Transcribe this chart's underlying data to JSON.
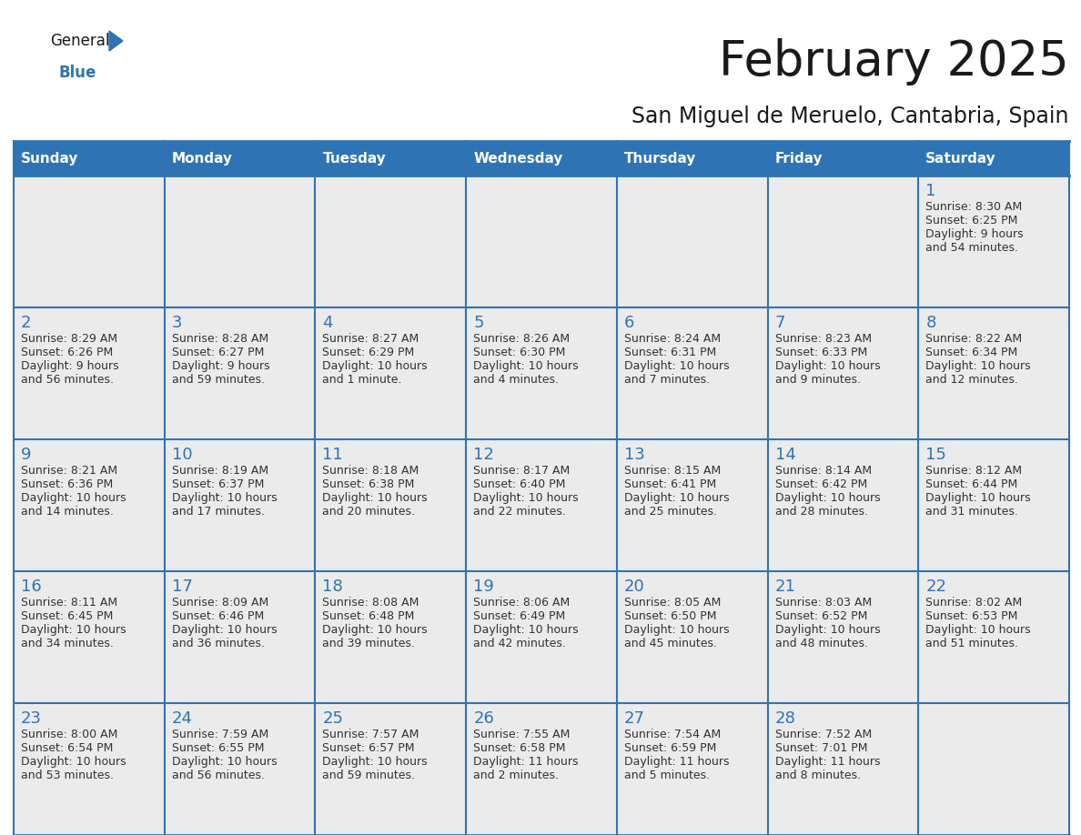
{
  "title": "February 2025",
  "subtitle": "San Miguel de Meruelo, Cantabria, Spain",
  "header_bg": "#2E74B5",
  "header_text": "#FFFFFF",
  "cell_bg": "#EBEBEB",
  "border_color": "#2E74B5",
  "title_color": "#1A1A1A",
  "subtitle_color": "#1A1A1A",
  "day_number_color": "#2E74B5",
  "cell_text_color": "#333333",
  "days_of_week": [
    "Sunday",
    "Monday",
    "Tuesday",
    "Wednesday",
    "Thursday",
    "Friday",
    "Saturday"
  ],
  "weeks": [
    [
      {
        "day": null,
        "lines": null
      },
      {
        "day": null,
        "lines": null
      },
      {
        "day": null,
        "lines": null
      },
      {
        "day": null,
        "lines": null
      },
      {
        "day": null,
        "lines": null
      },
      {
        "day": null,
        "lines": null
      },
      {
        "day": 1,
        "lines": [
          "Sunrise: 8:30 AM",
          "Sunset: 6:25 PM",
          "Daylight: 9 hours",
          "and 54 minutes."
        ]
      }
    ],
    [
      {
        "day": 2,
        "lines": [
          "Sunrise: 8:29 AM",
          "Sunset: 6:26 PM",
          "Daylight: 9 hours",
          "and 56 minutes."
        ]
      },
      {
        "day": 3,
        "lines": [
          "Sunrise: 8:28 AM",
          "Sunset: 6:27 PM",
          "Daylight: 9 hours",
          "and 59 minutes."
        ]
      },
      {
        "day": 4,
        "lines": [
          "Sunrise: 8:27 AM",
          "Sunset: 6:29 PM",
          "Daylight: 10 hours",
          "and 1 minute."
        ]
      },
      {
        "day": 5,
        "lines": [
          "Sunrise: 8:26 AM",
          "Sunset: 6:30 PM",
          "Daylight: 10 hours",
          "and 4 minutes."
        ]
      },
      {
        "day": 6,
        "lines": [
          "Sunrise: 8:24 AM",
          "Sunset: 6:31 PM",
          "Daylight: 10 hours",
          "and 7 minutes."
        ]
      },
      {
        "day": 7,
        "lines": [
          "Sunrise: 8:23 AM",
          "Sunset: 6:33 PM",
          "Daylight: 10 hours",
          "and 9 minutes."
        ]
      },
      {
        "day": 8,
        "lines": [
          "Sunrise: 8:22 AM",
          "Sunset: 6:34 PM",
          "Daylight: 10 hours",
          "and 12 minutes."
        ]
      }
    ],
    [
      {
        "day": 9,
        "lines": [
          "Sunrise: 8:21 AM",
          "Sunset: 6:36 PM",
          "Daylight: 10 hours",
          "and 14 minutes."
        ]
      },
      {
        "day": 10,
        "lines": [
          "Sunrise: 8:19 AM",
          "Sunset: 6:37 PM",
          "Daylight: 10 hours",
          "and 17 minutes."
        ]
      },
      {
        "day": 11,
        "lines": [
          "Sunrise: 8:18 AM",
          "Sunset: 6:38 PM",
          "Daylight: 10 hours",
          "and 20 minutes."
        ]
      },
      {
        "day": 12,
        "lines": [
          "Sunrise: 8:17 AM",
          "Sunset: 6:40 PM",
          "Daylight: 10 hours",
          "and 22 minutes."
        ]
      },
      {
        "day": 13,
        "lines": [
          "Sunrise: 8:15 AM",
          "Sunset: 6:41 PM",
          "Daylight: 10 hours",
          "and 25 minutes."
        ]
      },
      {
        "day": 14,
        "lines": [
          "Sunrise: 8:14 AM",
          "Sunset: 6:42 PM",
          "Daylight: 10 hours",
          "and 28 minutes."
        ]
      },
      {
        "day": 15,
        "lines": [
          "Sunrise: 8:12 AM",
          "Sunset: 6:44 PM",
          "Daylight: 10 hours",
          "and 31 minutes."
        ]
      }
    ],
    [
      {
        "day": 16,
        "lines": [
          "Sunrise: 8:11 AM",
          "Sunset: 6:45 PM",
          "Daylight: 10 hours",
          "and 34 minutes."
        ]
      },
      {
        "day": 17,
        "lines": [
          "Sunrise: 8:09 AM",
          "Sunset: 6:46 PM",
          "Daylight: 10 hours",
          "and 36 minutes."
        ]
      },
      {
        "day": 18,
        "lines": [
          "Sunrise: 8:08 AM",
          "Sunset: 6:48 PM",
          "Daylight: 10 hours",
          "and 39 minutes."
        ]
      },
      {
        "day": 19,
        "lines": [
          "Sunrise: 8:06 AM",
          "Sunset: 6:49 PM",
          "Daylight: 10 hours",
          "and 42 minutes."
        ]
      },
      {
        "day": 20,
        "lines": [
          "Sunrise: 8:05 AM",
          "Sunset: 6:50 PM",
          "Daylight: 10 hours",
          "and 45 minutes."
        ]
      },
      {
        "day": 21,
        "lines": [
          "Sunrise: 8:03 AM",
          "Sunset: 6:52 PM",
          "Daylight: 10 hours",
          "and 48 minutes."
        ]
      },
      {
        "day": 22,
        "lines": [
          "Sunrise: 8:02 AM",
          "Sunset: 6:53 PM",
          "Daylight: 10 hours",
          "and 51 minutes."
        ]
      }
    ],
    [
      {
        "day": 23,
        "lines": [
          "Sunrise: 8:00 AM",
          "Sunset: 6:54 PM",
          "Daylight: 10 hours",
          "and 53 minutes."
        ]
      },
      {
        "day": 24,
        "lines": [
          "Sunrise: 7:59 AM",
          "Sunset: 6:55 PM",
          "Daylight: 10 hours",
          "and 56 minutes."
        ]
      },
      {
        "day": 25,
        "lines": [
          "Sunrise: 7:57 AM",
          "Sunset: 6:57 PM",
          "Daylight: 10 hours",
          "and 59 minutes."
        ]
      },
      {
        "day": 26,
        "lines": [
          "Sunrise: 7:55 AM",
          "Sunset: 6:58 PM",
          "Daylight: 11 hours",
          "and 2 minutes."
        ]
      },
      {
        "day": 27,
        "lines": [
          "Sunrise: 7:54 AM",
          "Sunset: 6:59 PM",
          "Daylight: 11 hours",
          "and 5 minutes."
        ]
      },
      {
        "day": 28,
        "lines": [
          "Sunrise: 7:52 AM",
          "Sunset: 7:01 PM",
          "Daylight: 11 hours",
          "and 8 minutes."
        ]
      },
      {
        "day": null,
        "lines": null
      }
    ]
  ],
  "logo_general_color": "#1A1A1A",
  "logo_blue_color": "#2E74B5",
  "logo_triangle_color": "#2E74B5",
  "title_fontsize": 38,
  "subtitle_fontsize": 17,
  "header_fontsize": 11,
  "day_number_fontsize": 13,
  "cell_text_fontsize": 9
}
